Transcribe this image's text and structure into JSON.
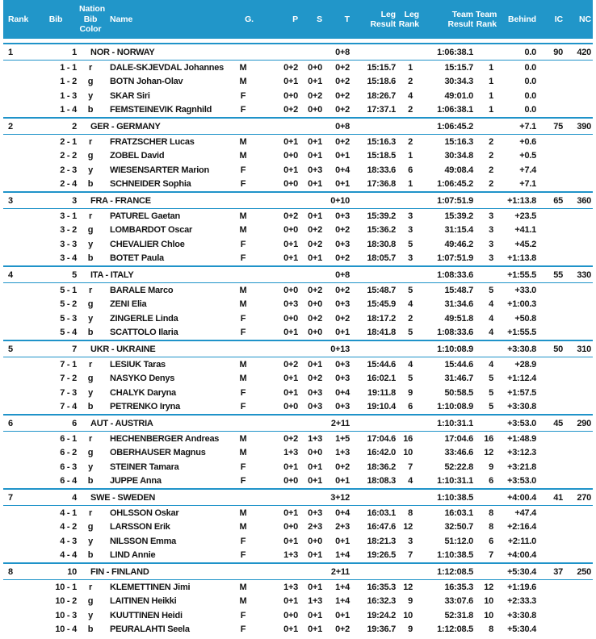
{
  "colors": {
    "header_bg": "#2196c9",
    "header_text": "#ffffff",
    "line": "#1f93c9",
    "text": "#141414"
  },
  "columns": [
    "Rank",
    "Bib",
    "Nation\nBib\nColor",
    "Name",
    "G.",
    "P",
    "S",
    "T",
    "Leg\nResult",
    "Leg\nRank",
    "Team\nResult",
    "Team\nRank",
    "Behind",
    "IC",
    "NC"
  ],
  "teams": [
    {
      "rank": "1",
      "bib": "1",
      "name": "NOR - NORWAY",
      "t": "0+8",
      "team_result": "1:06:38.1",
      "behind": "0.0",
      "ic": "90",
      "nc": "420",
      "athletes": [
        {
          "leg": "1 - 1",
          "color": "r",
          "name": "DALE-SKJEVDAL Johannes",
          "g": "M",
          "p": "0+2",
          "s": "0+0",
          "t": "0+2",
          "leg_result": "15:15.7",
          "leg_rank": "1",
          "team_result": "15:15.7",
          "team_rank": "1",
          "behind": "0.0"
        },
        {
          "leg": "1 - 2",
          "color": "g",
          "name": "BOTN Johan-Olav",
          "g": "M",
          "p": "0+1",
          "s": "0+1",
          "t": "0+2",
          "leg_result": "15:18.6",
          "leg_rank": "2",
          "team_result": "30:34.3",
          "team_rank": "1",
          "behind": "0.0"
        },
        {
          "leg": "1 - 3",
          "color": "y",
          "name": "SKAR Siri",
          "g": "F",
          "p": "0+0",
          "s": "0+2",
          "t": "0+2",
          "leg_result": "18:26.7",
          "leg_rank": "4",
          "team_result": "49:01.0",
          "team_rank": "1",
          "behind": "0.0"
        },
        {
          "leg": "1 - 4",
          "color": "b",
          "name": "FEMSTEINEVIK Ragnhild",
          "g": "F",
          "p": "0+2",
          "s": "0+0",
          "t": "0+2",
          "leg_result": "17:37.1",
          "leg_rank": "2",
          "team_result": "1:06:38.1",
          "team_rank": "1",
          "behind": "0.0"
        }
      ]
    },
    {
      "rank": "2",
      "bib": "2",
      "name": "GER - GERMANY",
      "t": "0+8",
      "team_result": "1:06:45.2",
      "behind": "+7.1",
      "ic": "75",
      "nc": "390",
      "athletes": [
        {
          "leg": "2 - 1",
          "color": "r",
          "name": "FRATZSCHER Lucas",
          "g": "M",
          "p": "0+1",
          "s": "0+1",
          "t": "0+2",
          "leg_result": "15:16.3",
          "leg_rank": "2",
          "team_result": "15:16.3",
          "team_rank": "2",
          "behind": "+0.6"
        },
        {
          "leg": "2 - 2",
          "color": "g",
          "name": "ZOBEL David",
          "g": "M",
          "p": "0+0",
          "s": "0+1",
          "t": "0+1",
          "leg_result": "15:18.5",
          "leg_rank": "1",
          "team_result": "30:34.8",
          "team_rank": "2",
          "behind": "+0.5"
        },
        {
          "leg": "2 - 3",
          "color": "y",
          "name": "WIESENSARTER Marion",
          "g": "F",
          "p": "0+1",
          "s": "0+3",
          "t": "0+4",
          "leg_result": "18:33.6",
          "leg_rank": "6",
          "team_result": "49:08.4",
          "team_rank": "2",
          "behind": "+7.4"
        },
        {
          "leg": "2 - 4",
          "color": "b",
          "name": "SCHNEIDER Sophia",
          "g": "F",
          "p": "0+0",
          "s": "0+1",
          "t": "0+1",
          "leg_result": "17:36.8",
          "leg_rank": "1",
          "team_result": "1:06:45.2",
          "team_rank": "2",
          "behind": "+7.1"
        }
      ]
    },
    {
      "rank": "3",
      "bib": "3",
      "name": "FRA - FRANCE",
      "t": "0+10",
      "team_result": "1:07:51.9",
      "behind": "+1:13.8",
      "ic": "65",
      "nc": "360",
      "athletes": [
        {
          "leg": "3 - 1",
          "color": "r",
          "name": "PATUREL Gaetan",
          "g": "M",
          "p": "0+2",
          "s": "0+1",
          "t": "0+3",
          "leg_result": "15:39.2",
          "leg_rank": "3",
          "team_result": "15:39.2",
          "team_rank": "3",
          "behind": "+23.5"
        },
        {
          "leg": "3 - 2",
          "color": "g",
          "name": "LOMBARDOT Oscar",
          "g": "M",
          "p": "0+0",
          "s": "0+2",
          "t": "0+2",
          "leg_result": "15:36.2",
          "leg_rank": "3",
          "team_result": "31:15.4",
          "team_rank": "3",
          "behind": "+41.1"
        },
        {
          "leg": "3 - 3",
          "color": "y",
          "name": "CHEVALIER Chloe",
          "g": "F",
          "p": "0+1",
          "s": "0+2",
          "t": "0+3",
          "leg_result": "18:30.8",
          "leg_rank": "5",
          "team_result": "49:46.2",
          "team_rank": "3",
          "behind": "+45.2"
        },
        {
          "leg": "3 - 4",
          "color": "b",
          "name": "BOTET Paula",
          "g": "F",
          "p": "0+1",
          "s": "0+1",
          "t": "0+2",
          "leg_result": "18:05.7",
          "leg_rank": "3",
          "team_result": "1:07:51.9",
          "team_rank": "3",
          "behind": "+1:13.8"
        }
      ]
    },
    {
      "rank": "4",
      "bib": "5",
      "name": "ITA - ITALY",
      "t": "0+8",
      "team_result": "1:08:33.6",
      "behind": "+1:55.5",
      "ic": "55",
      "nc": "330",
      "athletes": [
        {
          "leg": "5 - 1",
          "color": "r",
          "name": "BARALE Marco",
          "g": "M",
          "p": "0+0",
          "s": "0+2",
          "t": "0+2",
          "leg_result": "15:48.7",
          "leg_rank": "5",
          "team_result": "15:48.7",
          "team_rank": "5",
          "behind": "+33.0"
        },
        {
          "leg": "5 - 2",
          "color": "g",
          "name": "ZENI Elia",
          "g": "M",
          "p": "0+3",
          "s": "0+0",
          "t": "0+3",
          "leg_result": "15:45.9",
          "leg_rank": "4",
          "team_result": "31:34.6",
          "team_rank": "4",
          "behind": "+1:00.3"
        },
        {
          "leg": "5 - 3",
          "color": "y",
          "name": "ZINGERLE Linda",
          "g": "F",
          "p": "0+0",
          "s": "0+2",
          "t": "0+2",
          "leg_result": "18:17.2",
          "leg_rank": "2",
          "team_result": "49:51.8",
          "team_rank": "4",
          "behind": "+50.8"
        },
        {
          "leg": "5 - 4",
          "color": "b",
          "name": "SCATTOLO Ilaria",
          "g": "F",
          "p": "0+1",
          "s": "0+0",
          "t": "0+1",
          "leg_result": "18:41.8",
          "leg_rank": "5",
          "team_result": "1:08:33.6",
          "team_rank": "4",
          "behind": "+1:55.5"
        }
      ]
    },
    {
      "rank": "5",
      "bib": "7",
      "name": "UKR - UKRAINE",
      "t": "0+13",
      "team_result": "1:10:08.9",
      "behind": "+3:30.8",
      "ic": "50",
      "nc": "310",
      "athletes": [
        {
          "leg": "7 - 1",
          "color": "r",
          "name": "LESIUK Taras",
          "g": "M",
          "p": "0+2",
          "s": "0+1",
          "t": "0+3",
          "leg_result": "15:44.6",
          "leg_rank": "4",
          "team_result": "15:44.6",
          "team_rank": "4",
          "behind": "+28.9"
        },
        {
          "leg": "7 - 2",
          "color": "g",
          "name": "NASYKO Denys",
          "g": "M",
          "p": "0+1",
          "s": "0+2",
          "t": "0+3",
          "leg_result": "16:02.1",
          "leg_rank": "5",
          "team_result": "31:46.7",
          "team_rank": "5",
          "behind": "+1:12.4"
        },
        {
          "leg": "7 - 3",
          "color": "y",
          "name": "CHALYK Daryna",
          "g": "F",
          "p": "0+1",
          "s": "0+3",
          "t": "0+4",
          "leg_result": "19:11.8",
          "leg_rank": "9",
          "team_result": "50:58.5",
          "team_rank": "5",
          "behind": "+1:57.5"
        },
        {
          "leg": "7 - 4",
          "color": "b",
          "name": "PETRENKO Iryna",
          "g": "F",
          "p": "0+0",
          "s": "0+3",
          "t": "0+3",
          "leg_result": "19:10.4",
          "leg_rank": "6",
          "team_result": "1:10:08.9",
          "team_rank": "5",
          "behind": "+3:30.8"
        }
      ]
    },
    {
      "rank": "6",
      "bib": "6",
      "name": "AUT - AUSTRIA",
      "t": "2+11",
      "team_result": "1:10:31.1",
      "behind": "+3:53.0",
      "ic": "45",
      "nc": "290",
      "athletes": [
        {
          "leg": "6 - 1",
          "color": "r",
          "name": "HECHENBERGER Andreas",
          "g": "M",
          "p": "0+2",
          "s": "1+3",
          "t": "1+5",
          "leg_result": "17:04.6",
          "leg_rank": "16",
          "team_result": "17:04.6",
          "team_rank": "16",
          "behind": "+1:48.9"
        },
        {
          "leg": "6 - 2",
          "color": "g",
          "name": "OBERHAUSER Magnus",
          "g": "M",
          "p": "1+3",
          "s": "0+0",
          "t": "1+3",
          "leg_result": "16:42.0",
          "leg_rank": "10",
          "team_result": "33:46.6",
          "team_rank": "12",
          "behind": "+3:12.3"
        },
        {
          "leg": "6 - 3",
          "color": "y",
          "name": "STEINER Tamara",
          "g": "F",
          "p": "0+1",
          "s": "0+1",
          "t": "0+2",
          "leg_result": "18:36.2",
          "leg_rank": "7",
          "team_result": "52:22.8",
          "team_rank": "9",
          "behind": "+3:21.8"
        },
        {
          "leg": "6 - 4",
          "color": "b",
          "name": "JUPPE Anna",
          "g": "F",
          "p": "0+0",
          "s": "0+1",
          "t": "0+1",
          "leg_result": "18:08.3",
          "leg_rank": "4",
          "team_result": "1:10:31.1",
          "team_rank": "6",
          "behind": "+3:53.0"
        }
      ]
    },
    {
      "rank": "7",
      "bib": "4",
      "name": "SWE - SWEDEN",
      "t": "3+12",
      "team_result": "1:10:38.5",
      "behind": "+4:00.4",
      "ic": "41",
      "nc": "270",
      "athletes": [
        {
          "leg": "4 - 1",
          "color": "r",
          "name": "OHLSSON Oskar",
          "g": "M",
          "p": "0+1",
          "s": "0+3",
          "t": "0+4",
          "leg_result": "16:03.1",
          "leg_rank": "8",
          "team_result": "16:03.1",
          "team_rank": "8",
          "behind": "+47.4"
        },
        {
          "leg": "4 - 2",
          "color": "g",
          "name": "LARSSON Erik",
          "g": "M",
          "p": "0+0",
          "s": "2+3",
          "t": "2+3",
          "leg_result": "16:47.6",
          "leg_rank": "12",
          "team_result": "32:50.7",
          "team_rank": "8",
          "behind": "+2:16.4"
        },
        {
          "leg": "4 - 3",
          "color": "y",
          "name": "NILSSON Emma",
          "g": "F",
          "p": "0+1",
          "s": "0+0",
          "t": "0+1",
          "leg_result": "18:21.3",
          "leg_rank": "3",
          "team_result": "51:12.0",
          "team_rank": "6",
          "behind": "+2:11.0"
        },
        {
          "leg": "4 - 4",
          "color": "b",
          "name": "LIND Annie",
          "g": "F",
          "p": "1+3",
          "s": "0+1",
          "t": "1+4",
          "leg_result": "19:26.5",
          "leg_rank": "7",
          "team_result": "1:10:38.5",
          "team_rank": "7",
          "behind": "+4:00.4"
        }
      ]
    },
    {
      "rank": "8",
      "bib": "10",
      "name": "FIN - FINLAND",
      "t": "2+11",
      "team_result": "1:12:08.5",
      "behind": "+5:30.4",
      "ic": "37",
      "nc": "250",
      "athletes": [
        {
          "leg": "10 - 1",
          "color": "r",
          "name": "KLEMETTINEN Jimi",
          "g": "M",
          "p": "1+3",
          "s": "0+1",
          "t": "1+4",
          "leg_result": "16:35.3",
          "leg_rank": "12",
          "team_result": "16:35.3",
          "team_rank": "12",
          "behind": "+1:19.6"
        },
        {
          "leg": "10 - 2",
          "color": "g",
          "name": "LAITINEN Heikki",
          "g": "M",
          "p": "0+1",
          "s": "1+3",
          "t": "1+4",
          "leg_result": "16:32.3",
          "leg_rank": "9",
          "team_result": "33:07.6",
          "team_rank": "10",
          "behind": "+2:33.3"
        },
        {
          "leg": "10 - 3",
          "color": "y",
          "name": "KUUTTINEN Heidi",
          "g": "F",
          "p": "0+0",
          "s": "0+1",
          "t": "0+1",
          "leg_result": "19:24.2",
          "leg_rank": "10",
          "team_result": "52:31.8",
          "team_rank": "10",
          "behind": "+3:30.8"
        },
        {
          "leg": "10 - 4",
          "color": "b",
          "name": "PEURALAHTI Seela",
          "g": "F",
          "p": "0+1",
          "s": "0+1",
          "t": "0+2",
          "leg_result": "19:36.7",
          "leg_rank": "9",
          "team_result": "1:12:08.5",
          "team_rank": "8",
          "behind": "+5:30.4"
        }
      ]
    }
  ]
}
